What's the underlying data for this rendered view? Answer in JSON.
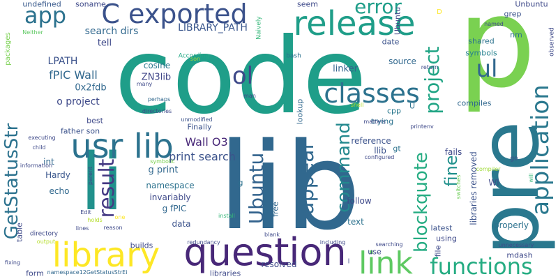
{
  "words": [
    {
      "text": "code",
      "color": "#1f9e89"
    },
    {
      "text": "p",
      "color": "#7ad151"
    },
    {
      "text": "lib",
      "color": "#31688e"
    },
    {
      "text": "pre",
      "color": "#2a788e"
    },
    {
      "text": "li",
      "color": "#21918c"
    },
    {
      "text": "question",
      "color": "#482878"
    },
    {
      "text": "release",
      "color": "#1f9e89"
    },
    {
      "text": "C exported",
      "color": "#3b528b"
    },
    {
      "text": "usr lib",
      "color": "#2c728e"
    },
    {
      "text": "library",
      "color": "#fde725"
    },
    {
      "text": "link",
      "color": "#5ec962"
    },
    {
      "text": "classes",
      "color": "#2c728e"
    },
    {
      "text": "application",
      "color": "#2a788e"
    },
    {
      "text": "functions",
      "color": "#25ac82"
    },
    {
      "text": "error",
      "color": "#1f9e89"
    },
    {
      "text": "result",
      "color": "#443983"
    },
    {
      "text": "appear",
      "color": "#31688e"
    },
    {
      "text": "project",
      "color": "#21a585"
    },
    {
      "text": "blockquote",
      "color": "#25ac82"
    },
    {
      "text": "command",
      "color": "#23898e"
    },
    {
      "text": "fine",
      "color": "#21918c"
    },
    {
      "text": "ol",
      "color": "#3e4989"
    },
    {
      "text": "ul",
      "color": "#31688e"
    },
    {
      "text": "app",
      "color": "#2c728e"
    },
    {
      "text": "Ubuntu",
      "color": "#33638d"
    },
    {
      "text": "GetStatusStr",
      "color": "#2c728e"
    },
    {
      "text": "Wall O3",
      "color": "#482878"
    },
    {
      "text": "print search",
      "color": "#3b528b"
    },
    {
      "text": "fPIC Wall",
      "color": "#31688e"
    },
    {
      "text": "search dirs",
      "color": "#31688e"
    },
    {
      "text": "LIBRARY_PATH",
      "color": "#39568c"
    },
    {
      "text": "LPATH",
      "color": "#3b528b"
    },
    {
      "text": "o project",
      "color": "#3e4989"
    },
    {
      "text": "ZN3lib",
      "color": "#404688"
    },
    {
      "text": "0x2fdb",
      "color": "#31688e"
    },
    {
      "text": "cosine",
      "color": "#2a788e"
    },
    {
      "text": "linker",
      "color": "#33638d"
    },
    {
      "text": "tell",
      "color": "#3e4989"
    },
    {
      "text": "undefined",
      "color": "#38598c"
    },
    {
      "text": "soname",
      "color": "#3e4989"
    },
    {
      "text": "seem",
      "color": "#3e4989"
    },
    {
      "text": "date",
      "color": "#3b528b"
    },
    {
      "text": "source",
      "color": "#31688e"
    },
    {
      "text": "shared",
      "color": "#2c728e"
    },
    {
      "text": "symbols",
      "color": "#26828e"
    },
    {
      "text": "compiles",
      "color": "#31688e"
    },
    {
      "text": "nm",
      "color": "#2c728e"
    },
    {
      "text": "grep",
      "color": "#3b528b"
    },
    {
      "text": "Unbuntu",
      "color": "#3e4989"
    },
    {
      "text": "Ubuntu",
      "color": "#414487"
    },
    {
      "text": "reference",
      "color": "#3b528b"
    },
    {
      "text": "llib",
      "color": "#3b528b"
    },
    {
      "text": "gt",
      "color": "#2c728e"
    },
    {
      "text": "cpp",
      "color": "#2a788e"
    },
    {
      "text": "trying",
      "color": "#2c728e"
    },
    {
      "text": "lookup",
      "color": "#31688e"
    },
    {
      "text": "best",
      "color": "#3e4989"
    },
    {
      "text": "father son",
      "color": "#3b528b"
    },
    {
      "text": "Finally",
      "color": "#3b528b"
    },
    {
      "text": "int",
      "color": "#31688e"
    },
    {
      "text": "Hardy",
      "color": "#39568c"
    },
    {
      "text": "echo",
      "color": "#31688e"
    },
    {
      "text": "g print",
      "color": "#31688e"
    },
    {
      "text": "namespace",
      "color": "#2c728e"
    },
    {
      "text": "invariably",
      "color": "#3e4989"
    },
    {
      "text": "g fPIC",
      "color": "#31688e"
    },
    {
      "text": "data",
      "color": "#3b528b"
    },
    {
      "text": "builds",
      "color": "#3e4989"
    },
    {
      "text": "libraries removed",
      "color": "#3b528b"
    },
    {
      "text": "Wl",
      "color": "#3e4989"
    },
    {
      "text": "fails",
      "color": "#3e4989"
    },
    {
      "text": "properly",
      "color": "#2c728e"
    },
    {
      "text": "latest",
      "color": "#3b528b"
    },
    {
      "text": "using",
      "color": "#3e4989"
    },
    {
      "text": "follow",
      "color": "#3e4989"
    },
    {
      "text": "text",
      "color": "#2c728e"
    },
    {
      "text": "free",
      "color": "#31688e"
    },
    {
      "text": "use",
      "color": "#3e4989"
    },
    {
      "text": "resolved",
      "color": "#3e4989"
    },
    {
      "text": "libraries",
      "color": "#3e4989"
    },
    {
      "text": "form",
      "color": "#3e4989"
    },
    {
      "text": "file",
      "color": "#3e4989"
    },
    {
      "text": "mdash",
      "color": "#3e4989"
    },
    {
      "text": "table",
      "color": "#3e4989"
    },
    {
      "text": "packages",
      "color": "#7ad151"
    },
    {
      "text": "Neither",
      "color": "#5ec962"
    },
    {
      "text": "Naively",
      "color": "#35b779"
    },
    {
      "text": "According",
      "color": "#22a884"
    },
    {
      "text": "son",
      "color": "#a0da39"
    },
    {
      "text": "bash",
      "color": "#2c728e"
    },
    {
      "text": "many",
      "color": "#3e4989"
    },
    {
      "text": "perhaps",
      "color": "#31688e"
    },
    {
      "text": "directories",
      "color": "#3e4989"
    },
    {
      "text": "unmodified",
      "color": "#3b528b"
    },
    {
      "text": "man",
      "color": "#3e4989"
    },
    {
      "text": "shell",
      "color": "#b5de2b"
    },
    {
      "text": "matters",
      "color": "#3e4989"
    },
    {
      "text": "printenv",
      "color": "#3e4989"
    },
    {
      "text": "configured",
      "color": "#3e4989"
    },
    {
      "text": "named",
      "color": "#3e4989"
    },
    {
      "text": "return",
      "color": "#3e4989"
    },
    {
      "text": "observed",
      "color": "#3e4989"
    },
    {
      "text": "go",
      "color": "#3e4989"
    },
    {
      "text": "will",
      "color": "#35b779"
    },
    {
      "text": "compiler",
      "color": "#a0da39"
    },
    {
      "text": "switches",
      "color": "#6ece58"
    },
    {
      "text": "executing",
      "color": "#3e4989"
    },
    {
      "text": "child",
      "color": "#3e4989"
    },
    {
      "text": "information",
      "color": "#3e4989"
    },
    {
      "text": "symbolic",
      "color": "#7ad151"
    },
    {
      "text": "parent",
      "color": "#3e4989"
    },
    {
      "text": "Edit",
      "color": "#3e4989"
    },
    {
      "text": "holds",
      "color": "#b5de2b"
    },
    {
      "text": "lines",
      "color": "#3e4989"
    },
    {
      "text": "directory",
      "color": "#3e4989"
    },
    {
      "text": "output",
      "color": "#b5de2b"
    },
    {
      "text": "one",
      "color": "#fde725"
    },
    {
      "text": "reason",
      "color": "#3e4989"
    },
    {
      "text": "redundancy",
      "color": "#3e4989"
    },
    {
      "text": "install",
      "color": "#35b779"
    },
    {
      "text": "blank",
      "color": "#3e4989"
    },
    {
      "text": "including",
      "color": "#3e4989"
    },
    {
      "text": "searching",
      "color": "#3e4989"
    },
    {
      "text": "unnecessary",
      "color": "#3e4989"
    },
    {
      "text": "fixing",
      "color": "#3e4989"
    },
    {
      "text": "namespace12GetStatusStrEi",
      "color": "#31688e"
    },
    {
      "text": "g",
      "color": "#2c728e"
    },
    {
      "text": "U",
      "color": "#2c728e"
    },
    {
      "text": "D",
      "color": "#fde725"
    },
    {
      "text": "l",
      "color": "#3e4989"
    }
  ]
}
